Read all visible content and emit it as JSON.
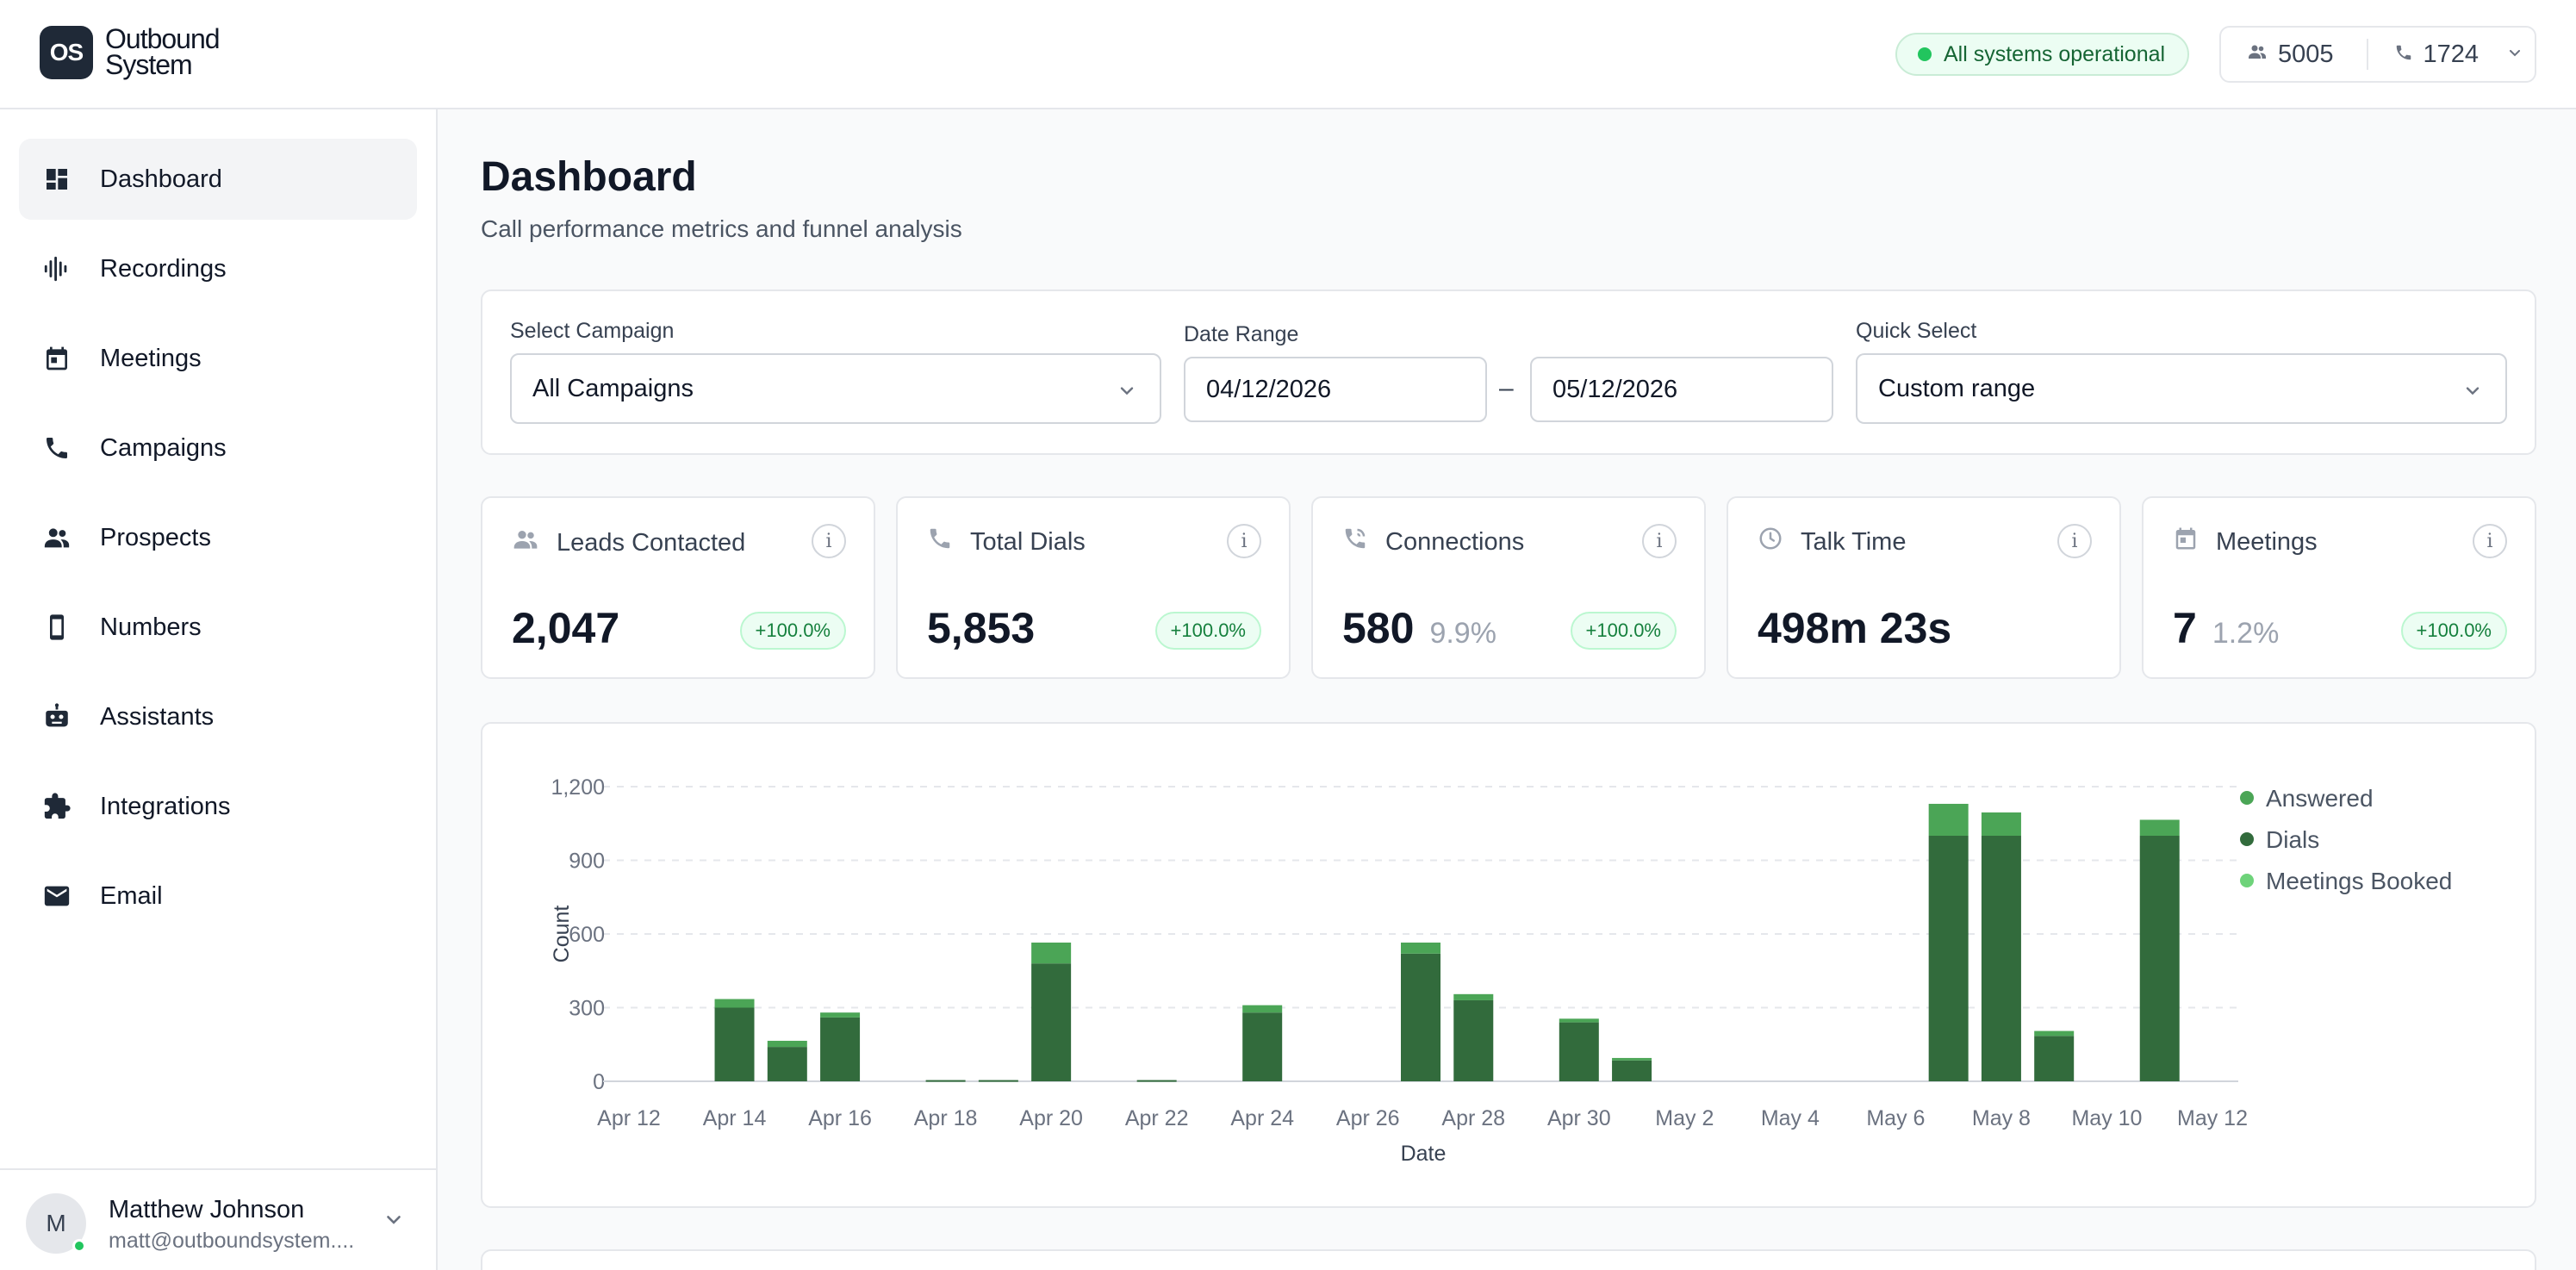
{
  "brand": {
    "logo_mark": "OS",
    "name_line1": "Outbound",
    "name_line2": "System"
  },
  "header": {
    "status": "All systems operational",
    "counters": [
      {
        "icon": "people-icon",
        "value": "5005"
      },
      {
        "icon": "phone-icon",
        "value": "1724"
      }
    ]
  },
  "sidebar": {
    "items": [
      {
        "label": "Dashboard",
        "icon": "dashboard-icon",
        "active": true
      },
      {
        "label": "Recordings",
        "icon": "waveform-icon"
      },
      {
        "label": "Meetings",
        "icon": "calendar-icon"
      },
      {
        "label": "Campaigns",
        "icon": "phone-icon"
      },
      {
        "label": "Prospects",
        "icon": "people-icon"
      },
      {
        "label": "Numbers",
        "icon": "mobile-icon"
      },
      {
        "label": "Assistants",
        "icon": "robot-icon"
      },
      {
        "label": "Integrations",
        "icon": "puzzle-icon"
      },
      {
        "label": "Email",
        "icon": "mail-icon"
      }
    ],
    "user": {
      "initial": "M",
      "name": "Matthew Johnson",
      "email": "matt@outboundsystem...."
    }
  },
  "page": {
    "title": "Dashboard",
    "subtitle": "Call performance metrics and funnel analysis"
  },
  "filters": {
    "campaign_label": "Select Campaign",
    "campaign_value": "All Campaigns",
    "date_label": "Date Range",
    "date_from": "04/12/2026",
    "date_sep": "–",
    "date_to": "05/12/2026",
    "quick_label": "Quick Select",
    "quick_value": "Custom range"
  },
  "metrics": [
    {
      "label": "Leads Contacted",
      "icon": "people-icon",
      "value": "2,047",
      "pct": "",
      "delta": "+100.0%"
    },
    {
      "label": "Total Dials",
      "icon": "phone-icon",
      "value": "5,853",
      "pct": "",
      "delta": "+100.0%"
    },
    {
      "label": "Connections",
      "icon": "phone-connected-icon",
      "value": "580",
      "pct": "9.9%",
      "delta": "+100.0%"
    },
    {
      "label": "Talk Time",
      "icon": "clock-icon",
      "value": "498m 23s",
      "pct": "",
      "delta": ""
    },
    {
      "label": "Meetings",
      "icon": "calendar-icon",
      "value": "7",
      "pct": "1.2%",
      "delta": "+100.0%"
    }
  ],
  "info_glyph": "i",
  "colors": {
    "dials": "#326b3c",
    "answered": "#4ba556",
    "meetings": "#6ed37a",
    "status_green": "#22c55e"
  },
  "chart_data": {
    "type": "bar",
    "stacked": true,
    "xlabel": "Date",
    "ylabel": "Count",
    "ylim": [
      0,
      1200
    ],
    "yticks": [
      0,
      300,
      600,
      900,
      1200
    ],
    "ytick_labels": [
      "0",
      "300",
      "600",
      "900",
      "1,200"
    ],
    "xtick_labels": [
      "Apr 12",
      "Apr 14",
      "Apr 16",
      "Apr 18",
      "Apr 20",
      "Apr 22",
      "Apr 24",
      "Apr 26",
      "Apr 28",
      "Apr 30",
      "May 2",
      "May 4",
      "May 6",
      "May 8",
      "May 10",
      "May 12"
    ],
    "categories": [
      "Apr 12",
      "Apr 13",
      "Apr 14",
      "Apr 15",
      "Apr 16",
      "Apr 17",
      "Apr 18",
      "Apr 19",
      "Apr 20",
      "Apr 21",
      "Apr 22",
      "Apr 23",
      "Apr 24",
      "Apr 25",
      "Apr 26",
      "Apr 27",
      "Apr 28",
      "Apr 29",
      "Apr 30",
      "May 1",
      "May 2",
      "May 3",
      "May 4",
      "May 5",
      "May 6",
      "May 7",
      "May 8",
      "May 9",
      "May 10",
      "May 11",
      "May 12"
    ],
    "series": [
      {
        "name": "Dials",
        "values": [
          0,
          0,
          300,
          140,
          260,
          0,
          5,
          5,
          480,
          0,
          5,
          0,
          280,
          0,
          0,
          520,
          330,
          0,
          240,
          85,
          0,
          0,
          0,
          0,
          0,
          1000,
          1000,
          185,
          0,
          1000,
          0
        ]
      },
      {
        "name": "Answered",
        "values": [
          0,
          0,
          35,
          25,
          20,
          0,
          0,
          0,
          85,
          0,
          0,
          0,
          30,
          0,
          0,
          45,
          25,
          0,
          15,
          10,
          0,
          0,
          0,
          0,
          0,
          130,
          95,
          20,
          0,
          65,
          0
        ]
      },
      {
        "name": "Meetings Booked",
        "values": [
          0,
          0,
          0,
          0,
          0,
          0,
          0,
          0,
          0,
          0,
          0,
          0,
          0,
          0,
          0,
          0,
          0,
          0,
          0,
          0,
          0,
          0,
          0,
          0,
          0,
          0,
          0,
          0,
          0,
          0,
          0
        ]
      }
    ],
    "legend": [
      "Answered",
      "Dials",
      "Meetings Booked"
    ],
    "legend_position": "right",
    "grid": true
  }
}
